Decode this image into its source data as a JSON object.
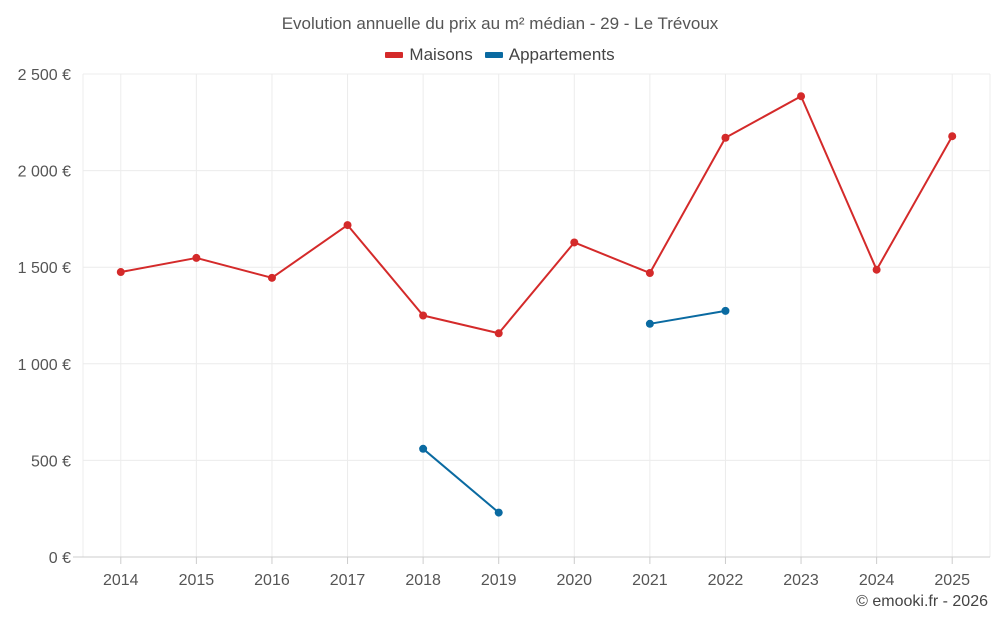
{
  "chart_data": {
    "type": "line",
    "title": "Evolution annuelle du prix au m² médian - 29 - Le Trévoux",
    "categories": [
      "2014",
      "2015",
      "2016",
      "2017",
      "2018",
      "2019",
      "2020",
      "2021",
      "2022",
      "2023",
      "2024",
      "2025"
    ],
    "ylim": [
      0,
      2500
    ],
    "yticks": [
      0,
      500,
      1000,
      1500,
      2000,
      2500
    ],
    "ytick_labels": [
      "0 €",
      "500 €",
      "1 000 €",
      "1 500 €",
      "2 000 €",
      "2 500 €"
    ],
    "grid": true,
    "legend_position": "top-center",
    "series": [
      {
        "name": "Maisons",
        "color": "#d42a2a",
        "values": [
          1475,
          1548,
          1445,
          1718,
          1250,
          1158,
          1628,
          1470,
          2170,
          2385,
          1487,
          2178
        ]
      },
      {
        "name": "Appartements",
        "color": "#0a6aa1",
        "values": [
          null,
          null,
          null,
          null,
          560,
          230,
          null,
          1207,
          1274,
          null,
          null,
          null
        ]
      }
    ]
  },
  "credit": "© emooki.fr - 2026"
}
